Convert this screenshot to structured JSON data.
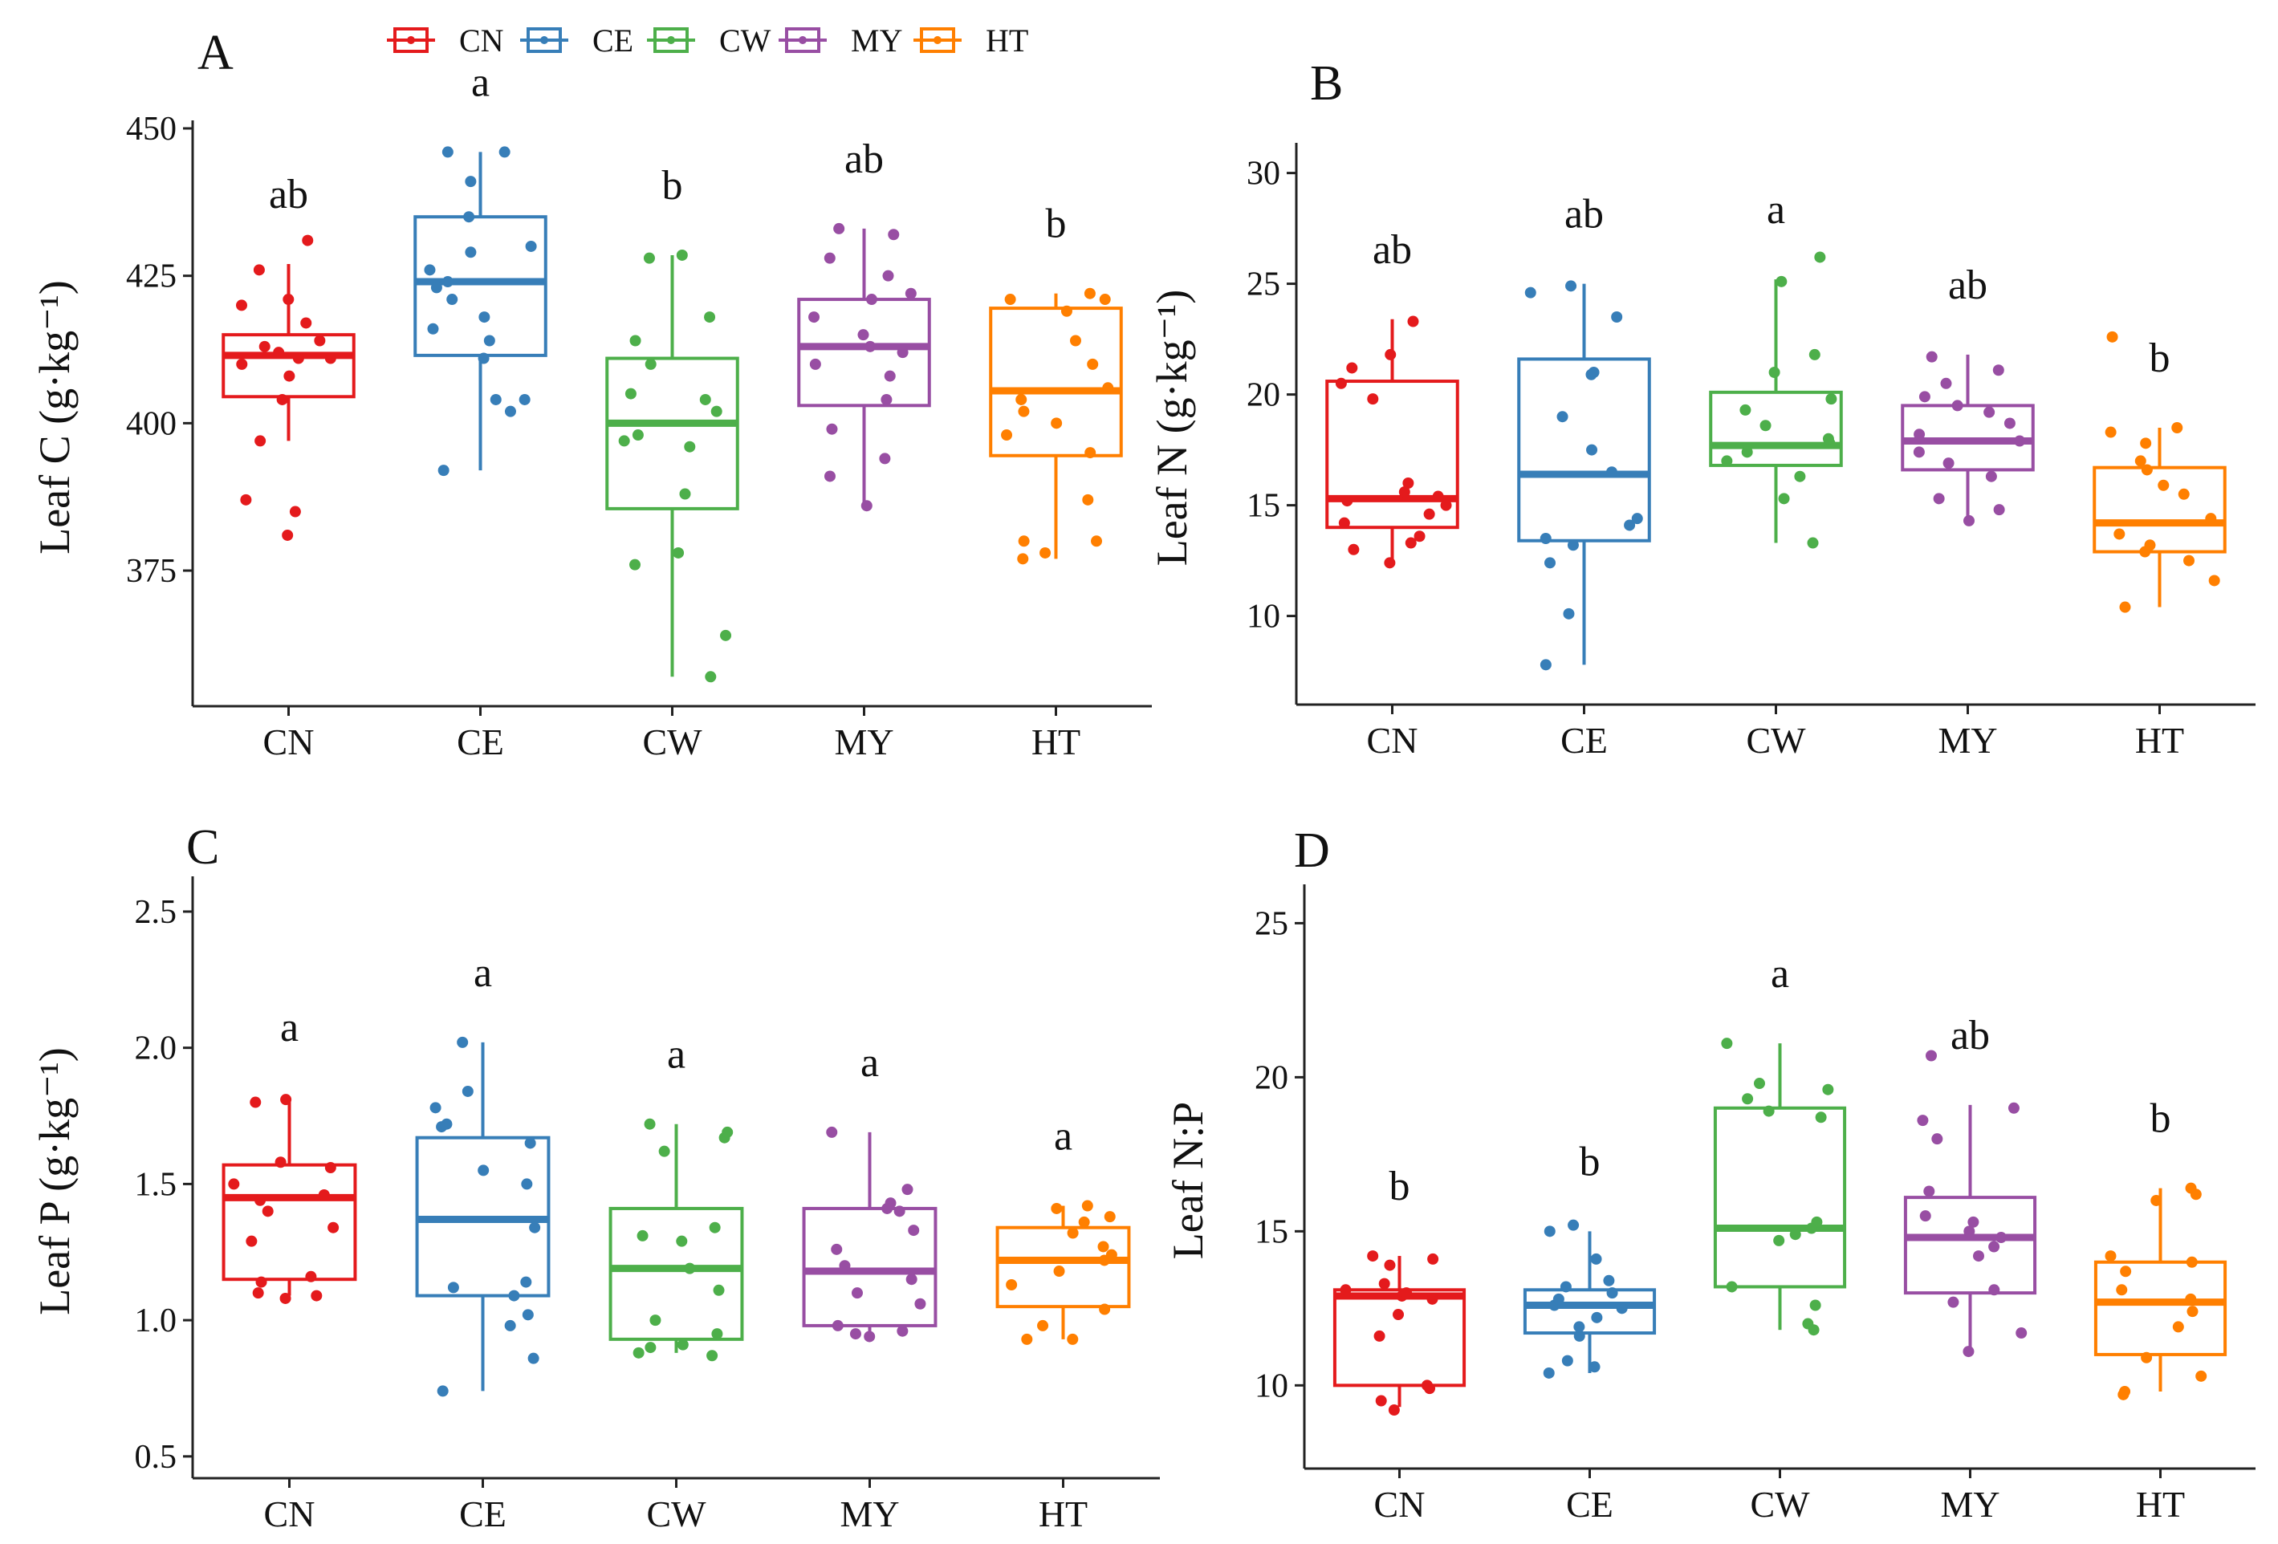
{
  "chart_data": [
    {
      "panel": "A",
      "type": "box",
      "categories": [
        "CN",
        "CE",
        "CW",
        "MY",
        "HT"
      ],
      "ylabel": "Leaf C (g·kg⁻¹)",
      "ylim": [
        352,
        450
      ],
      "yticks": [
        375,
        400,
        425,
        450
      ],
      "boxes": [
        {
          "name": "CN",
          "min": 397,
          "q1": 404.5,
          "median": 411.5,
          "q3": 415,
          "max": 427,
          "letter": "ab",
          "points": [
            381,
            385,
            387,
            397,
            404,
            408,
            410,
            411,
            411,
            412,
            413,
            414,
            417,
            420,
            421,
            426,
            431
          ]
        },
        {
          "name": "CE",
          "min": 392,
          "q1": 411.5,
          "median": 424,
          "q3": 435,
          "max": 446,
          "letter": "a",
          "points": [
            392,
            402,
            404,
            404,
            411,
            414,
            416,
            418,
            421,
            423,
            424,
            426,
            429,
            430,
            435,
            441,
            446,
            446
          ]
        },
        {
          "name": "CW",
          "min": 357,
          "q1": 385.5,
          "median": 400,
          "q3": 411,
          "max": 428.5,
          "letter": "b",
          "points": [
            357,
            364,
            376,
            378,
            388,
            396,
            397,
            398,
            402,
            404,
            405,
            410,
            414,
            418,
            428,
            428.5
          ]
        },
        {
          "name": "MY",
          "min": 386,
          "q1": 403,
          "median": 413,
          "q3": 421,
          "max": 433,
          "letter": "ab",
          "points": [
            386,
            391,
            394,
            399,
            404,
            408,
            410,
            412,
            413,
            415,
            418,
            421,
            422,
            425,
            428,
            432,
            433
          ]
        },
        {
          "name": "HT",
          "min": 377,
          "q1": 394.5,
          "median": 405.5,
          "q3": 419.5,
          "max": 422,
          "letter": "b",
          "points": [
            377,
            378,
            380,
            380,
            387,
            395,
            398,
            400,
            402,
            404,
            406,
            410,
            414,
            419,
            421,
            421,
            422
          ]
        }
      ]
    },
    {
      "panel": "B",
      "type": "box",
      "categories": [
        "CN",
        "CE",
        "CW",
        "MY",
        "HT"
      ],
      "ylabel": "Leaf N (g·kg⁻¹)",
      "ylim": [
        6,
        31
      ],
      "yticks": [
        10,
        15,
        20,
        25,
        30
      ],
      "boxes": [
        {
          "name": "CN",
          "min": 12.5,
          "q1": 14,
          "median": 15.3,
          "q3": 20.6,
          "max": 23.4,
          "letter": "ab",
          "points": [
            12.4,
            13.0,
            13.3,
            13.6,
            14.2,
            14.6,
            15.0,
            15.2,
            15.4,
            15.6,
            16.0,
            19.8,
            20.5,
            21.2,
            21.8,
            23.3
          ]
        },
        {
          "name": "CE",
          "min": 7.8,
          "q1": 13.4,
          "median": 16.4,
          "q3": 21.6,
          "max": 25,
          "letter": "ab",
          "points": [
            7.8,
            10.1,
            12.4,
            13.2,
            13.5,
            14.1,
            14.4,
            16.5,
            17.5,
            19.0,
            20.9,
            21.0,
            23.5,
            24.6,
            24.9
          ]
        },
        {
          "name": "CW",
          "min": 13.3,
          "q1": 16.8,
          "median": 17.7,
          "q3": 20.1,
          "max": 25.2,
          "letter": "a",
          "points": [
            13.3,
            15.3,
            16.3,
            17.0,
            17.4,
            17.8,
            18.0,
            18.6,
            19.3,
            19.8,
            21.0,
            21.8,
            25.1,
            26.2
          ]
        },
        {
          "name": "MY",
          "min": 14.2,
          "q1": 16.6,
          "median": 17.9,
          "q3": 19.5,
          "max": 21.8,
          "letter": "ab",
          "points": [
            14.3,
            14.8,
            15.3,
            16.3,
            16.9,
            17.4,
            17.9,
            18.2,
            18.7,
            19.2,
            19.5,
            19.9,
            20.5,
            21.1,
            21.7
          ]
        },
        {
          "name": "HT",
          "min": 10.4,
          "q1": 12.9,
          "median": 14.2,
          "q3": 16.7,
          "max": 18.5,
          "letter": "b",
          "points": [
            10.4,
            11.6,
            12.5,
            12.9,
            13.2,
            13.7,
            14.4,
            15.5,
            15.9,
            16.6,
            17.0,
            17.8,
            18.3,
            18.5,
            22.6
          ]
        }
      ]
    },
    {
      "panel": "C",
      "type": "box",
      "categories": [
        "CN",
        "CE",
        "CW",
        "MY",
        "HT"
      ],
      "ylabel": "Leaf P (g·kg⁻¹)",
      "ylim": [
        0.42,
        2.6
      ],
      "yticks": [
        0.5,
        1.0,
        1.5,
        2.0,
        2.5
      ],
      "boxes": [
        {
          "name": "CN",
          "min": 1.09,
          "q1": 1.15,
          "median": 1.45,
          "q3": 1.57,
          "max": 1.82,
          "letter": "a",
          "points": [
            1.08,
            1.09,
            1.1,
            1.14,
            1.16,
            1.29,
            1.34,
            1.4,
            1.44,
            1.46,
            1.5,
            1.56,
            1.58,
            1.8,
            1.81
          ]
        },
        {
          "name": "CE",
          "min": 0.74,
          "q1": 1.09,
          "median": 1.37,
          "q3": 1.67,
          "max": 2.02,
          "letter": "a",
          "points": [
            0.74,
            0.86,
            0.98,
            1.02,
            1.09,
            1.12,
            1.14,
            1.34,
            1.5,
            1.55,
            1.65,
            1.71,
            1.72,
            1.78,
            1.84,
            2.02
          ]
        },
        {
          "name": "CW",
          "min": 0.88,
          "q1": 0.93,
          "median": 1.19,
          "q3": 1.41,
          "max": 1.72,
          "letter": "a",
          "points": [
            0.87,
            0.88,
            0.9,
            0.91,
            0.95,
            1.0,
            1.11,
            1.19,
            1.29,
            1.31,
            1.34,
            1.62,
            1.67,
            1.69,
            1.72
          ]
        },
        {
          "name": "MY",
          "min": 0.95,
          "q1": 0.98,
          "median": 1.18,
          "q3": 1.41,
          "max": 1.69,
          "letter": "a",
          "points": [
            0.94,
            0.95,
            0.96,
            0.98,
            1.06,
            1.1,
            1.15,
            1.2,
            1.26,
            1.33,
            1.4,
            1.41,
            1.43,
            1.48,
            1.69
          ]
        },
        {
          "name": "HT",
          "min": 0.93,
          "q1": 1.05,
          "median": 1.22,
          "q3": 1.34,
          "max": 1.42,
          "letter": "a",
          "points": [
            0.93,
            0.93,
            0.98,
            1.04,
            1.13,
            1.18,
            1.22,
            1.24,
            1.27,
            1.32,
            1.36,
            1.38,
            1.41,
            1.42
          ]
        }
      ]
    },
    {
      "panel": "D",
      "type": "box",
      "categories": [
        "CN",
        "CE",
        "CW",
        "MY",
        "HT"
      ],
      "ylabel": "Leaf N:P",
      "ylim": [
        7.3,
        26
      ],
      "yticks": [
        10,
        15,
        20,
        25
      ],
      "boxes": [
        {
          "name": "CN",
          "min": 9.3,
          "q1": 10.0,
          "median": 12.9,
          "q3": 13.1,
          "max": 14.2,
          "letter": "b",
          "points": [
            9.2,
            9.5,
            9.9,
            10.0,
            11.6,
            12.3,
            12.8,
            12.9,
            13.0,
            13.1,
            13.3,
            13.9,
            14.1,
            14.2
          ]
        },
        {
          "name": "CE",
          "min": 10.4,
          "q1": 11.7,
          "median": 12.6,
          "q3": 13.1,
          "max": 15.0,
          "letter": "b",
          "points": [
            10.4,
            10.6,
            10.8,
            11.6,
            11.9,
            12.2,
            12.5,
            12.6,
            12.8,
            13.0,
            13.2,
            13.4,
            14.1,
            15.0,
            15.2
          ]
        },
        {
          "name": "CW",
          "min": 11.8,
          "q1": 13.2,
          "median": 15.1,
          "q3": 19.0,
          "max": 21.1,
          "letter": "a",
          "points": [
            11.8,
            12.0,
            12.6,
            13.2,
            14.7,
            14.9,
            15.1,
            15.3,
            18.7,
            18.9,
            19.3,
            19.6,
            19.8,
            21.1
          ]
        },
        {
          "name": "MY",
          "min": 11.1,
          "q1": 13.0,
          "median": 14.8,
          "q3": 16.1,
          "max": 19.1,
          "letter": "ab",
          "points": [
            11.1,
            11.7,
            12.7,
            13.1,
            14.2,
            14.5,
            14.8,
            15.0,
            15.3,
            15.5,
            16.3,
            18.0,
            18.6,
            19.0,
            20.7
          ]
        },
        {
          "name": "HT",
          "min": 9.8,
          "q1": 11.0,
          "median": 12.7,
          "q3": 14.0,
          "max": 16.4,
          "letter": "b",
          "points": [
            9.7,
            9.8,
            10.3,
            10.9,
            11.9,
            12.4,
            12.8,
            13.1,
            13.7,
            14.0,
            14.2,
            16.0,
            16.2,
            16.4
          ]
        }
      ]
    }
  ],
  "panel_labels": [
    "A",
    "B",
    "C",
    "D"
  ],
  "legend": [
    {
      "name": "CN",
      "color": "#E41A1C"
    },
    {
      "name": "CE",
      "color": "#377EB8"
    },
    {
      "name": "CW",
      "color": "#4DAF4A"
    },
    {
      "name": "MY",
      "color": "#984EA3"
    },
    {
      "name": "HT",
      "color": "#FF7F00"
    }
  ]
}
